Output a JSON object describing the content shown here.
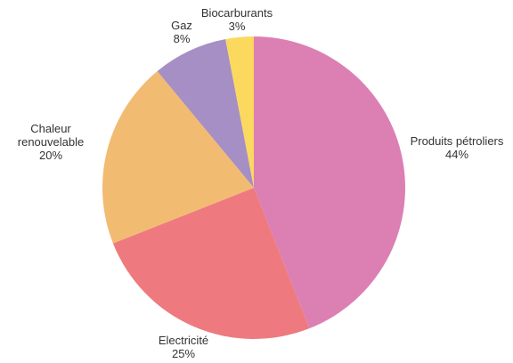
{
  "chart_data": {
    "type": "pie",
    "categories": [
      "Produits pétroliers",
      "Electricité",
      "Chaleur renouvelable",
      "Gaz",
      "Biocarburants"
    ],
    "values": [
      44,
      25,
      20,
      8,
      3
    ],
    "value_labels": [
      "44%",
      "25%",
      "20%",
      "8%",
      "3%"
    ],
    "label_lines": [
      [
        "Produits pétroliers"
      ],
      [
        "Electricité"
      ],
      [
        "Chaleur",
        "renouvelable"
      ],
      [
        "Gaz"
      ],
      [
        "Biocarburants"
      ]
    ],
    "colors": [
      "#dc7fb3",
      "#ee7a7f",
      "#f2bb72",
      "#a58fc4",
      "#fbd95e"
    ],
    "unit": "%",
    "start_angle_deg": 0,
    "direction": "clockwise",
    "legend": "none",
    "title": ""
  }
}
